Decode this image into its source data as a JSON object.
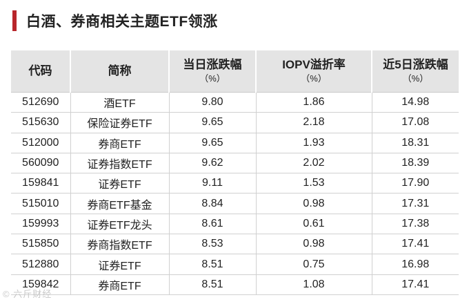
{
  "title": "白酒、券商相关主题ETF领涨",
  "colors": {
    "accent": "#b8262b",
    "header_bg": "#e4e4e4"
  },
  "table": {
    "headers": [
      {
        "label": "代码",
        "unit": ""
      },
      {
        "label": "简称",
        "unit": ""
      },
      {
        "label": "当日涨跌幅",
        "unit": "（%）"
      },
      {
        "label": "IOPV溢折率",
        "unit": "（%）"
      },
      {
        "label": "近5日涨跌幅",
        "unit": "（%）"
      }
    ],
    "rows": [
      [
        "512690",
        "酒ETF",
        "9.80",
        "1.86",
        "14.98"
      ],
      [
        "515630",
        "保险证券ETF",
        "9.65",
        "2.18",
        "17.08"
      ],
      [
        "512000",
        "券商ETF",
        "9.65",
        "1.93",
        "18.31"
      ],
      [
        "560090",
        "证券指数ETF",
        "9.62",
        "2.02",
        "18.39"
      ],
      [
        "159841",
        "证券ETF",
        "9.11",
        "1.53",
        "17.90"
      ],
      [
        "515010",
        "券商ETF基金",
        "8.84",
        "0.98",
        "17.31"
      ],
      [
        "159993",
        "证券ETF龙头",
        "8.61",
        "0.61",
        "17.38"
      ],
      [
        "515850",
        "券商指数ETF",
        "8.53",
        "0.98",
        "17.41"
      ],
      [
        "512880",
        "证券ETF",
        "8.51",
        "0.75",
        "16.98"
      ],
      [
        "159842",
        "券商ETF",
        "8.51",
        "1.08",
        "17.41"
      ]
    ]
  },
  "watermark": "© 六斤财经"
}
